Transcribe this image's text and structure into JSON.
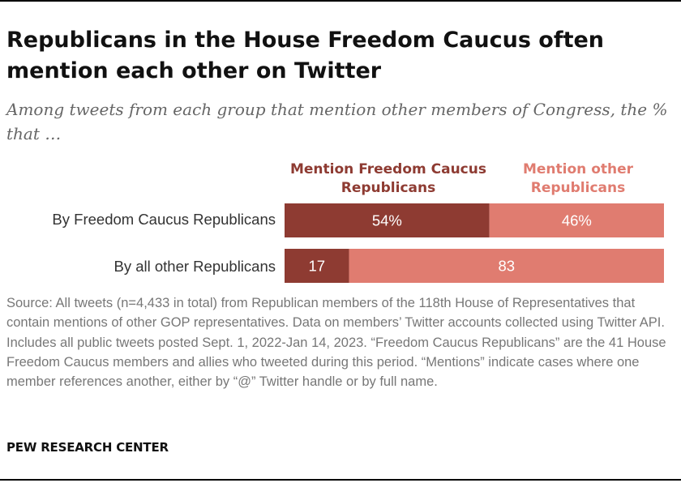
{
  "title": "Republicans in the House Freedom Caucus often mention each other on Twitter",
  "subtitle": "Among tweets from each group that mention other members of Congress, the % that …",
  "source": "Source: All tweets (n=4,433 in total) from Republican members of the 118th House of Representatives that contain mentions of other GOP representatives. Data on members’ Twitter accounts collected using Twitter API. Includes all public tweets posted Sept. 1, 2022-Jan 14, 2023. “Freedom Caucus Republicans” are the 41 House Freedom Caucus members and allies who tweeted during this period. “Mentions” indicate cases where one member references another, either by “@” Twitter handle or by full name.",
  "org": "PEW RESEARCH CENTER",
  "colors": {
    "series_a": "#8e3b32",
    "series_b": "#e07c70",
    "label_text": "#ffffff"
  },
  "chart_data": {
    "type": "bar",
    "orientation": "horizontal",
    "stacked": true,
    "categories": [
      "By Freedom Caucus Republicans",
      "By all other Republicans"
    ],
    "series": [
      {
        "name": "Mention Freedom Caucus Republicans",
        "values": [
          54,
          17
        ],
        "labels": [
          "54%",
          "17"
        ]
      },
      {
        "name": "Mention other Republicans",
        "values": [
          46,
          83
        ],
        "labels": [
          "46%",
          "83"
        ]
      }
    ],
    "xlim": [
      0,
      100
    ],
    "legend": "top"
  }
}
